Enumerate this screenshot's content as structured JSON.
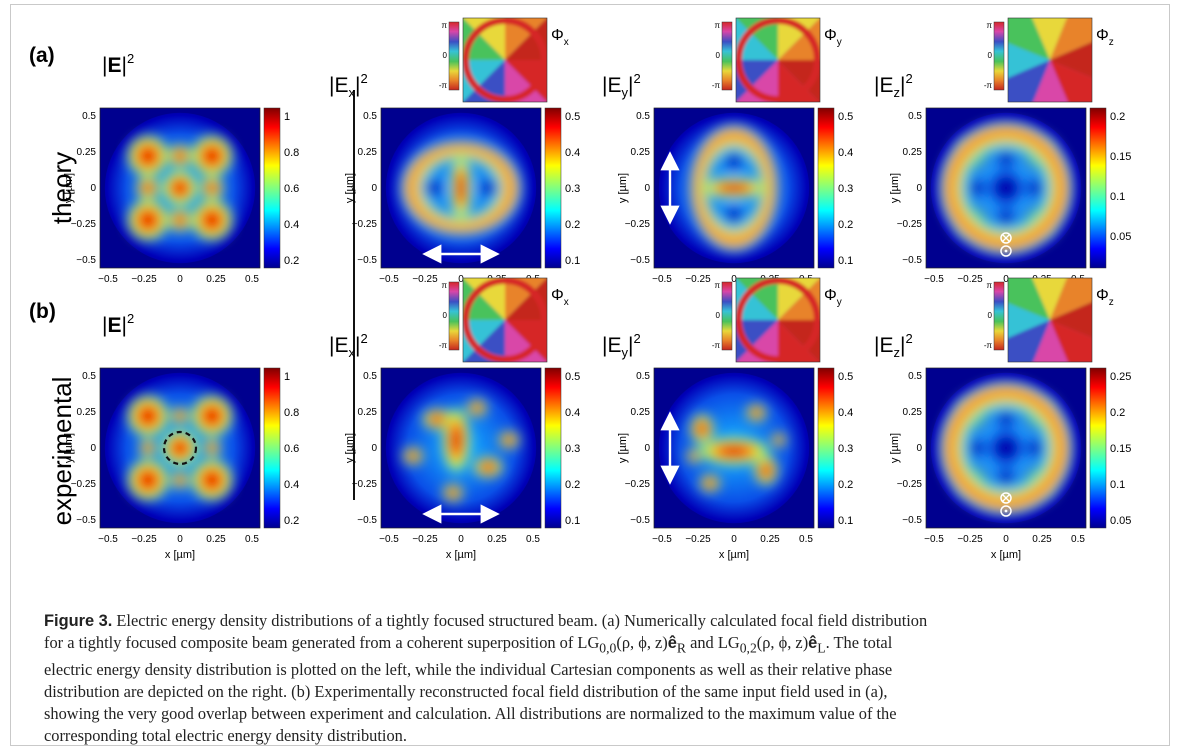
{
  "panel_labels": [
    "(a)",
    "(b)"
  ],
  "row_labels": [
    "theory",
    "experimental"
  ],
  "x_axis_label": "x [µm]",
  "y_axis_label": "y [µm]",
  "axis_ticks": [
    "−0.5",
    "−0.25",
    "0",
    "0.25",
    "0.5"
  ],
  "rows": [
    {
      "id": "theory",
      "panels": [
        {
          "title_base": "|E|",
          "title_bold": true,
          "colorbar_ticks": [
            "1",
            "0.8",
            "0.6",
            "0.4",
            "0.2"
          ],
          "phase_label": ""
        },
        {
          "title_base": "|E",
          "sub": "x",
          "colorbar_ticks": [
            "0.5",
            "0.4",
            "0.3",
            "0.2",
            "0.1"
          ],
          "phase_label": "Φ",
          "phase_sub": "x",
          "pattern": "ex_theory"
        },
        {
          "title_base": "|E",
          "sub": "y",
          "colorbar_ticks": [
            "0.5",
            "0.4",
            "0.3",
            "0.2",
            "0.1"
          ],
          "phase_label": "Φ",
          "phase_sub": "y",
          "pattern": "ey_theory"
        },
        {
          "title_base": "|E",
          "sub": "z",
          "colorbar_ticks": [
            "0.2",
            "0.15",
            "0.1",
            "0.05"
          ],
          "phase_label": "Φ",
          "phase_sub": "z",
          "pattern": "ez_theory"
        }
      ]
    },
    {
      "id": "experimental",
      "panels": [
        {
          "title_base": "|E|",
          "title_bold": true,
          "colorbar_ticks": [
            "1",
            "0.8",
            "0.6",
            "0.4",
            "0.2"
          ],
          "phase_label": ""
        },
        {
          "title_base": "|E",
          "sub": "x",
          "colorbar_ticks": [
            "0.5",
            "0.4",
            "0.3",
            "0.2",
            "0.1"
          ],
          "phase_label": "Φ",
          "phase_sub": "x",
          "pattern": "ex_exp"
        },
        {
          "title_base": "|E",
          "sub": "y",
          "colorbar_ticks": [
            "0.5",
            "0.4",
            "0.3",
            "0.2",
            "0.1"
          ],
          "phase_label": "Φ",
          "phase_sub": "y",
          "pattern": "ey_exp"
        },
        {
          "title_base": "|E",
          "sub": "z",
          "colorbar_ticks": [
            "0.25",
            "0.2",
            "0.15",
            "0.1",
            "0.05"
          ],
          "phase_label": "Φ",
          "phase_sub": "z",
          "pattern": "ez_exp"
        }
      ]
    }
  ],
  "phase_colorbar_ticks": [
    "π",
    "0",
    "-π"
  ],
  "title_superscript": "2",
  "caption": {
    "label": "Figure 3.",
    "line1": " Electric energy density distributions of a tightly focused structured beam. (a) Numerically calculated focal field distribution",
    "line2": "for a tightly focused composite beam generated from a coherent superposition of LG",
    "lg1_sub": "0,0",
    "lg1_args": "(ρ, ϕ, z)",
    "e_hat": "ê",
    "e1_sub": "R",
    "and": " and LG",
    "lg2_sub": "0,2",
    "lg2_args": "(ρ, ϕ, z)",
    "e2_sub": "L",
    "line2_end": ". The total",
    "line3": "electric energy density distribution is plotted on the left, while the individual Cartesian components as well as their relative phase",
    "line4": "distribution are depicted on the right. (b) Experimentally reconstructed focal field distribution of the same input field used in (a),",
    "line5": "showing the very good overlap between experiment and calculation. All distributions are normalized to the maximum value of the",
    "line6": "corresponding total electric energy density distribution."
  },
  "colors": {
    "jet_low": "#00008f",
    "jet_high": "#800000",
    "phase_bar": [
      "#d62728",
      "#d946a8",
      "#3b4fc4",
      "#36c2d6",
      "#49c25b",
      "#e8d83a",
      "#e8832a",
      "#c4251f"
    ]
  }
}
